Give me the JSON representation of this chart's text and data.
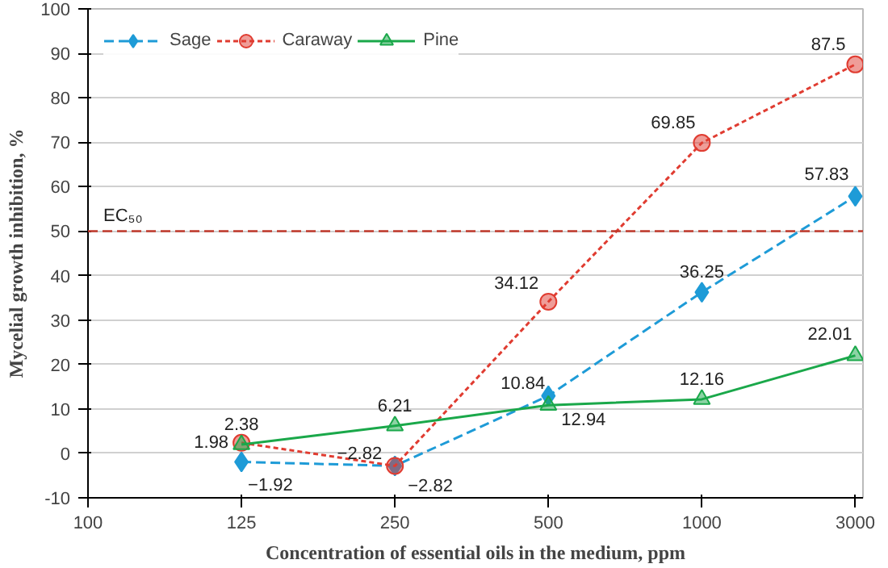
{
  "chart_data": {
    "type": "line",
    "xlabel": "Concentration of essential oils in the medium, ppm",
    "ylabel": "Mycelial growth inhibition, %",
    "categories": [
      "100",
      "125",
      "250",
      "500",
      "1000",
      "3000"
    ],
    "ylim": [
      -10,
      100
    ],
    "yticks": [
      -10,
      0,
      10,
      20,
      30,
      40,
      50,
      60,
      70,
      80,
      90,
      100
    ],
    "grid": "y",
    "legend": "top left",
    "series": [
      {
        "name": "Sage",
        "color": "#1e9bd7",
        "marker": "diamond",
        "line_style": "dashed",
        "values": [
          null,
          -1.92,
          -2.82,
          12.94,
          36.25,
          57.83
        ],
        "value_labels": [
          null,
          "−1.92",
          "−2.82",
          "12.94",
          "36.25",
          "57.83"
        ]
      },
      {
        "name": "Caraway",
        "color": "#e03c31",
        "marker": "circle",
        "line_style": "dotted",
        "values": [
          null,
          2.38,
          -2.82,
          34.12,
          69.85,
          87.5
        ],
        "value_labels": [
          null,
          "2.38",
          "−2.82",
          "34.12",
          "69.85",
          "87.5"
        ]
      },
      {
        "name": "Pine",
        "color": "#1aa84a",
        "marker": "triangle",
        "line_style": "solid",
        "values": [
          null,
          1.98,
          6.21,
          10.84,
          12.16,
          22.01
        ],
        "value_labels": [
          null,
          "1.98",
          "6.21",
          "10.84",
          "12.16",
          "22.01"
        ]
      }
    ],
    "ref_lines": [
      {
        "axis": "y",
        "value": 50,
        "label": "EC₅₀",
        "color": "#c0392b",
        "line_style": "dashed"
      }
    ]
  }
}
